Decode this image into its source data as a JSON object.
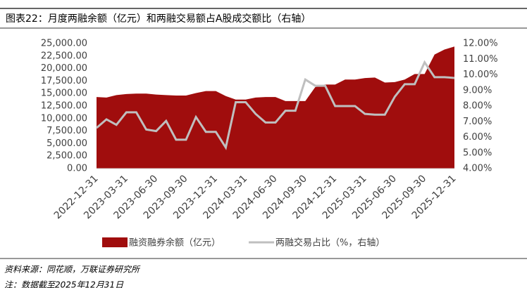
{
  "chart_data": {
    "type": "area-line",
    "title": "图表22：月度两融余额（亿元）和两融交易额占A股成交额比（右轴）",
    "categories": [
      "2022-12-31",
      null,
      null,
      "2023-03-31",
      null,
      null,
      "2023-06-30",
      null,
      null,
      "2023-09-30",
      null,
      null,
      "2023-12-31",
      null,
      null,
      "2024-03-31",
      null,
      null,
      "2024-06-30",
      null,
      null,
      "2024-09-30",
      null,
      null,
      "2024-12-31",
      null,
      null,
      "2025-03-31",
      null,
      null,
      "2025-06-30",
      null,
      null,
      "2025-09-30",
      null,
      null,
      "2025-12-31"
    ],
    "series": [
      {
        "name": "融资融券余额（亿元）",
        "color": "#a00d0d",
        "type": "area",
        "values": [
          14300,
          14200,
          14700,
          14900,
          15000,
          15000,
          14800,
          14700,
          14600,
          14600,
          15100,
          15500,
          15500,
          14500,
          13800,
          13800,
          14200,
          14300,
          14300,
          13500,
          13500,
          13500,
          16300,
          16800,
          16800,
          17800,
          17800,
          18100,
          18200,
          17200,
          17300,
          17800,
          18900,
          18900,
          22800,
          23800,
          24400
        ]
      },
      {
        "name": "两融交易占比（%，右轴）",
        "color": "#bfbfbf",
        "type": "line",
        "axis": "y2",
        "values": [
          6.6,
          7.15,
          6.8,
          7.6,
          7.6,
          6.5,
          6.4,
          7.05,
          5.85,
          5.85,
          7.3,
          6.35,
          6.35,
          5.35,
          8.25,
          8.25,
          7.5,
          6.95,
          6.95,
          7.7,
          7.7,
          9.7,
          9.3,
          9.3,
          8.0,
          8.0,
          8.0,
          7.5,
          7.45,
          7.45,
          8.6,
          9.4,
          9.4,
          10.8,
          9.85,
          9.85,
          9.8
        ]
      }
    ],
    "ylim": [
      0,
      25000
    ],
    "yticks": [
      {
        "value": 0,
        "label": "0.00"
      },
      {
        "value": 2500,
        "label": "2,500.00"
      },
      {
        "value": 5000,
        "label": "5,000.00"
      },
      {
        "value": 7500,
        "label": "7,500.00"
      },
      {
        "value": 10000,
        "label": "10,000.00"
      },
      {
        "value": 12500,
        "label": "12,500.00"
      },
      {
        "value": 15000,
        "label": "15,000.00"
      },
      {
        "value": 17500,
        "label": "17,500.00"
      },
      {
        "value": 20000,
        "label": "20,000.00"
      },
      {
        "value": 22500,
        "label": "22,500.00"
      },
      {
        "value": 25000,
        "label": "25,000.00"
      }
    ],
    "y2lim": [
      4,
      12
    ],
    "y2ticks": [
      {
        "value": 4,
        "label": "4.00%"
      },
      {
        "value": 5,
        "label": "5.00%"
      },
      {
        "value": 6,
        "label": "6.00%"
      },
      {
        "value": 7,
        "label": "7.00%"
      },
      {
        "value": 8,
        "label": "8.00%"
      },
      {
        "value": 9,
        "label": "9.00%"
      },
      {
        "value": 10,
        "label": "10.00%"
      },
      {
        "value": 11,
        "label": "11.00%"
      },
      {
        "value": 12,
        "label": "12.00%"
      }
    ],
    "legend": "bottom",
    "source": "资料来源：同花顺，万联证券研究所",
    "note": "注：数据截至2025年12月31日"
  }
}
